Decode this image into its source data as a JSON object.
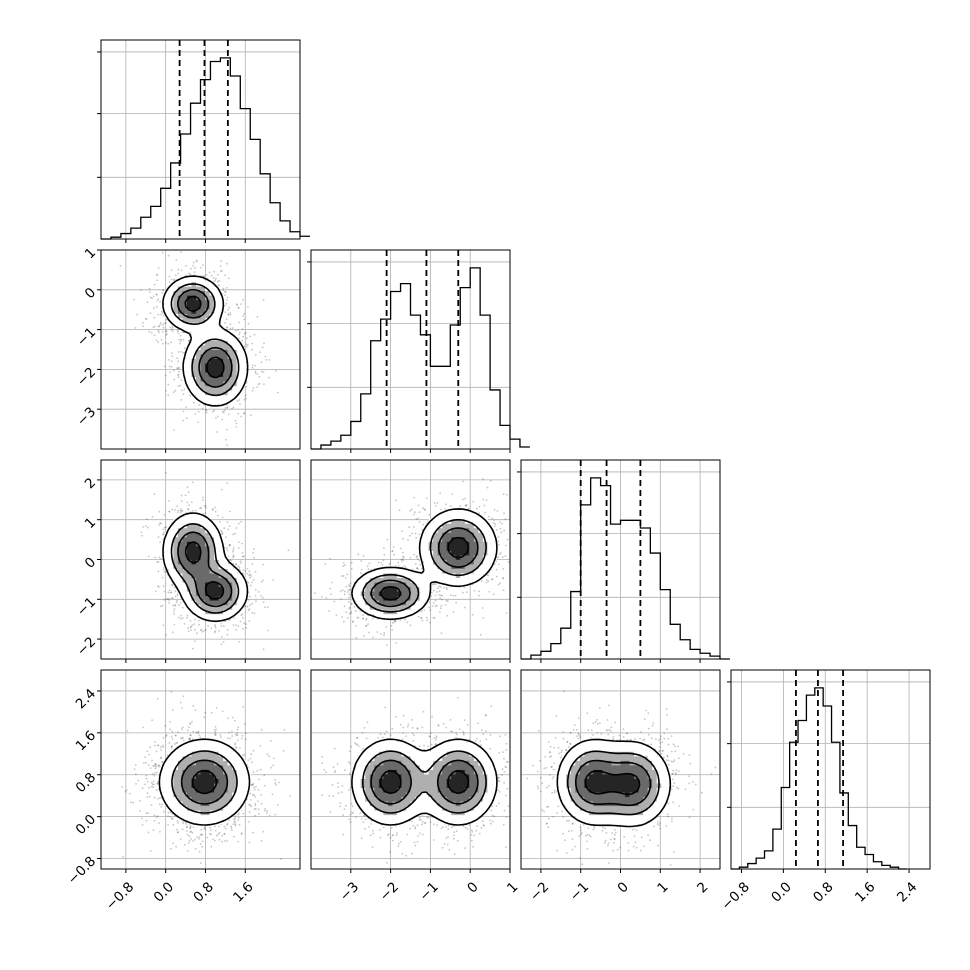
{
  "chart_data": {
    "type": "corner",
    "dims": [
      {
        "range": [
          -1.3,
          2.7
        ],
        "ticks": [
          -0.8,
          0.0,
          0.8,
          1.6
        ],
        "tick_labels": [
          "−0.8",
          "0.0",
          "0.8",
          "1.6"
        ],
        "quantiles": [
          0.28,
          0.78,
          1.25
        ],
        "hist_edges_start": -1.3,
        "hist_bin_width": 0.2,
        "hist_counts": [
          0,
          0.01,
          0.03,
          0.06,
          0.12,
          0.18,
          0.28,
          0.42,
          0.58,
          0.75,
          0.88,
          0.98,
          1.0,
          0.9,
          0.72,
          0.55,
          0.36,
          0.2,
          0.1,
          0.04,
          0.015
        ]
      },
      {
        "range": [
          -4.0,
          1.0
        ],
        "ticks": [
          -3,
          -2,
          -1,
          0,
          1
        ],
        "tick_labels": [
          "−3",
          "−2",
          "−1",
          "0",
          "1"
        ],
        "quantiles": [
          -2.1,
          -1.1,
          -0.3
        ],
        "modes": [
          {
            "x": 0.55,
            "y": -0.35,
            "sx": 0.25,
            "sy": 0.22,
            "w": 1.0
          },
          {
            "x": 1.0,
            "y": -1.95,
            "sx": 0.28,
            "sy": 0.3,
            "w": 0.95
          }
        ],
        "hist_edges_start": -4.0,
        "hist_bin_width": 0.25,
        "hist_counts": [
          0,
          0.02,
          0.04,
          0.07,
          0.14,
          0.28,
          0.55,
          0.66,
          0.8,
          0.84,
          0.68,
          0.58,
          0.42,
          0.42,
          0.63,
          0.82,
          0.92,
          0.68,
          0.3,
          0.12,
          0.05,
          0.01
        ]
      },
      {
        "range": [
          -2.5,
          2.5
        ],
        "ticks": [
          -2,
          -1,
          0,
          1,
          2
        ],
        "tick_labels": [
          "−2",
          "−1",
          "0",
          "1",
          "2"
        ],
        "quantiles": [
          -1.0,
          -0.35,
          0.5
        ],
        "hist_edges_start": -2.5,
        "hist_bin_width": 0.25,
        "hist_counts": [
          0,
          0.02,
          0.04,
          0.08,
          0.16,
          0.35,
          0.8,
          0.94,
          0.9,
          0.7,
          0.72,
          0.72,
          0.68,
          0.55,
          0.36,
          0.18,
          0.1,
          0.05,
          0.03,
          0.015,
          0
        ]
      },
      {
        "range": [
          -1.0,
          2.8
        ],
        "ticks": [
          -0.8,
          0.0,
          0.8,
          1.6,
          2.4
        ],
        "tick_labels": [
          "−0.8",
          "0.0",
          "0.8",
          "1.6",
          "2.4"
        ],
        "quantiles": [
          0.24,
          0.66,
          1.14
        ],
        "hist_edges_start": -1.0,
        "hist_bin_width": 0.16,
        "hist_counts": [
          0,
          0.01,
          0.03,
          0.06,
          0.1,
          0.22,
          0.45,
          0.7,
          0.82,
          0.96,
          1.0,
          0.9,
          0.7,
          0.42,
          0.24,
          0.12,
          0.08,
          0.04,
          0.02,
          0.01,
          0
        ]
      }
    ],
    "pairs": [
      {
        "row": 1,
        "col": 0,
        "modes": [
          {
            "x": 0.55,
            "y": -0.35,
            "sx": 0.28,
            "sy": 0.32
          },
          {
            "x": 1.0,
            "y": -1.95,
            "sx": 0.3,
            "sy": 0.45
          }
        ]
      },
      {
        "row": 2,
        "col": 0,
        "modes": [
          {
            "x": 0.55,
            "y": 0.2,
            "sx": 0.28,
            "sy": 0.45
          },
          {
            "x": 1.0,
            "y": -0.8,
            "sx": 0.3,
            "sy": 0.35
          }
        ]
      },
      {
        "row": 2,
        "col": 1,
        "modes": [
          {
            "x": -2.0,
            "y": -0.85,
            "sx": 0.45,
            "sy": 0.3
          },
          {
            "x": -0.3,
            "y": 0.3,
            "sx": 0.45,
            "sy": 0.45
          }
        ]
      },
      {
        "row": 3,
        "col": 0,
        "modes": [
          {
            "x": 0.78,
            "y": 0.66,
            "sx": 0.42,
            "sy": 0.38
          }
        ]
      },
      {
        "row": 3,
        "col": 1,
        "modes": [
          {
            "x": -2.0,
            "y": 0.66,
            "sx": 0.45,
            "sy": 0.38
          },
          {
            "x": -0.3,
            "y": 0.66,
            "sx": 0.45,
            "sy": 0.38
          }
        ]
      },
      {
        "row": 3,
        "col": 2,
        "modes": [
          {
            "x": -0.7,
            "y": 0.66,
            "sx": 0.42,
            "sy": 0.38
          },
          {
            "x": 0.3,
            "y": 0.62,
            "sx": 0.45,
            "sy": 0.38
          }
        ]
      }
    ],
    "grid": true,
    "contour_levels": [
      0.39,
      0.86,
      0.99
    ]
  }
}
